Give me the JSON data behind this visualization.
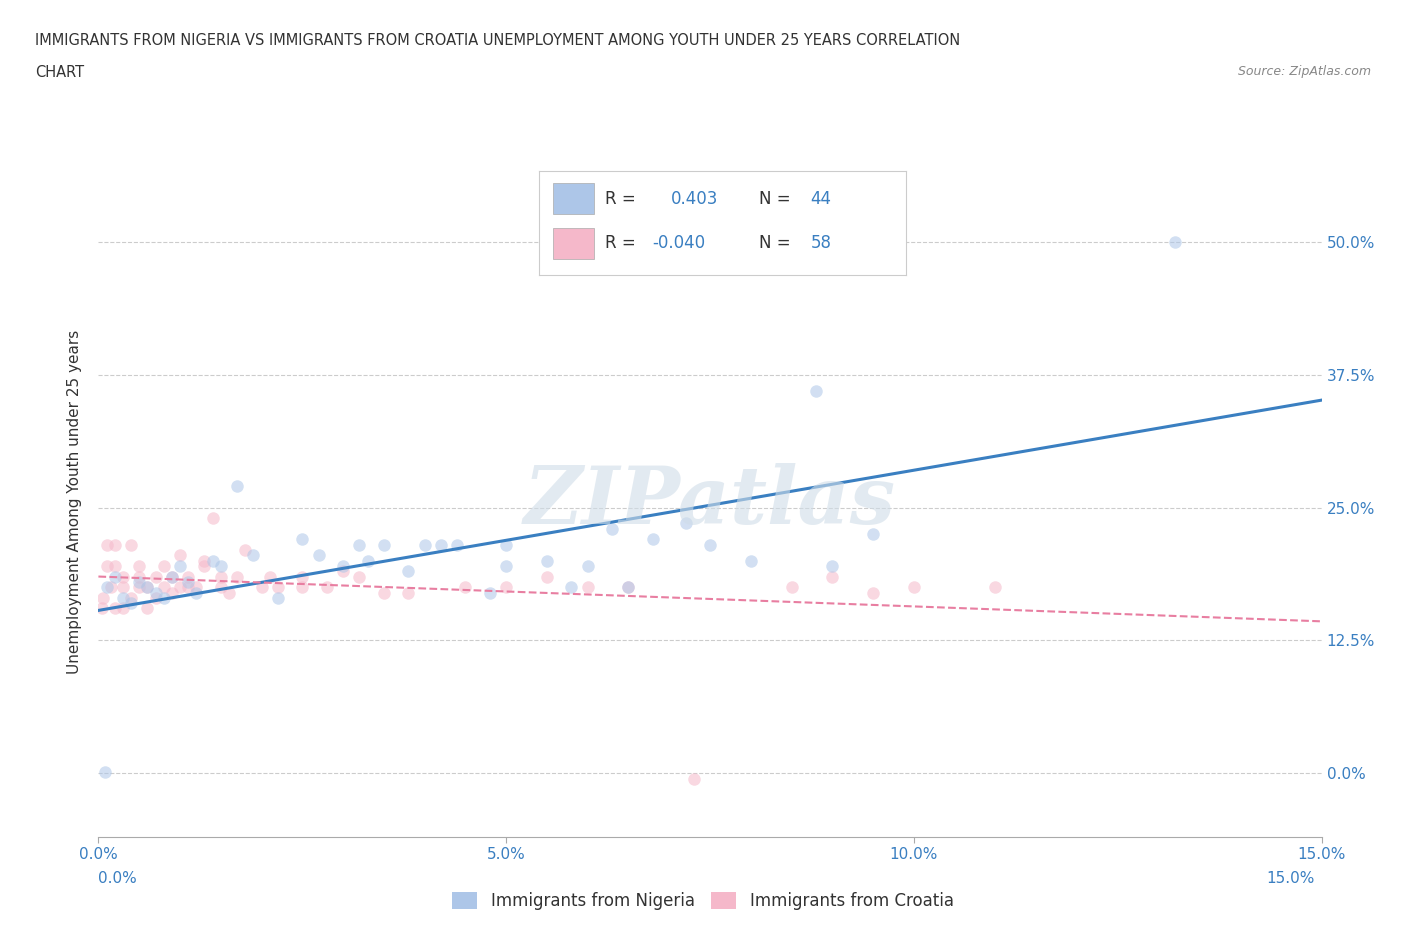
{
  "title_line1": "IMMIGRANTS FROM NIGERIA VS IMMIGRANTS FROM CROATIA UNEMPLOYMENT AMONG YOUTH UNDER 25 YEARS CORRELATION",
  "title_line2": "CHART",
  "source": "Source: ZipAtlas.com",
  "ylabel": "Unemployment Among Youth under 25 years",
  "xmin": 0.0,
  "xmax": 0.15,
  "ymin": -0.06,
  "ymax": 0.57,
  "yticks": [
    0.0,
    0.125,
    0.25,
    0.375,
    0.5
  ],
  "ytick_labels": [
    "0.0%",
    "12.5%",
    "25.0%",
    "37.5%",
    "50.0%"
  ],
  "xticks": [
    0.0,
    0.05,
    0.1,
    0.15
  ],
  "xtick_labels": [
    "0.0%",
    "5.0%",
    "10.0%",
    "15.0%"
  ],
  "nigeria_color": "#adc6e8",
  "croatia_color": "#f5b8ca",
  "nigeria_line_color": "#3a7fc1",
  "croatia_line_color": "#e87ea1",
  "R_nigeria": 0.403,
  "N_nigeria": 44,
  "R_croatia": -0.04,
  "N_croatia": 58,
  "nigeria_x": [
    0.0008,
    0.001,
    0.002,
    0.003,
    0.004,
    0.005,
    0.006,
    0.007,
    0.008,
    0.009,
    0.01,
    0.011,
    0.012,
    0.014,
    0.015,
    0.017,
    0.019,
    0.022,
    0.025,
    0.027,
    0.03,
    0.032,
    0.033,
    0.035,
    0.038,
    0.04,
    0.042,
    0.044,
    0.048,
    0.05,
    0.05,
    0.055,
    0.058,
    0.06,
    0.063,
    0.065,
    0.068,
    0.072,
    0.075,
    0.08,
    0.088,
    0.09,
    0.095,
    0.132
  ],
  "nigeria_y": [
    0.001,
    0.175,
    0.185,
    0.165,
    0.16,
    0.18,
    0.175,
    0.17,
    0.165,
    0.185,
    0.195,
    0.18,
    0.17,
    0.2,
    0.195,
    0.27,
    0.205,
    0.165,
    0.22,
    0.205,
    0.195,
    0.215,
    0.2,
    0.215,
    0.19,
    0.215,
    0.215,
    0.215,
    0.17,
    0.195,
    0.215,
    0.2,
    0.175,
    0.195,
    0.23,
    0.175,
    0.22,
    0.235,
    0.215,
    0.2,
    0.36,
    0.195,
    0.225,
    0.5
  ],
  "croatia_x": [
    0.0004,
    0.0006,
    0.001,
    0.001,
    0.0015,
    0.002,
    0.002,
    0.002,
    0.003,
    0.003,
    0.003,
    0.004,
    0.004,
    0.005,
    0.005,
    0.005,
    0.006,
    0.006,
    0.007,
    0.007,
    0.008,
    0.008,
    0.009,
    0.009,
    0.01,
    0.01,
    0.011,
    0.011,
    0.012,
    0.013,
    0.013,
    0.014,
    0.015,
    0.015,
    0.016,
    0.017,
    0.018,
    0.02,
    0.021,
    0.022,
    0.025,
    0.025,
    0.028,
    0.03,
    0.032,
    0.035,
    0.038,
    0.045,
    0.05,
    0.055,
    0.06,
    0.065,
    0.073,
    0.085,
    0.09,
    0.095,
    0.1,
    0.11
  ],
  "croatia_y": [
    0.155,
    0.165,
    0.195,
    0.215,
    0.175,
    0.155,
    0.195,
    0.215,
    0.175,
    0.185,
    0.155,
    0.165,
    0.215,
    0.175,
    0.185,
    0.195,
    0.155,
    0.175,
    0.185,
    0.165,
    0.175,
    0.195,
    0.17,
    0.185,
    0.175,
    0.205,
    0.175,
    0.185,
    0.175,
    0.195,
    0.2,
    0.24,
    0.175,
    0.185,
    0.17,
    0.185,
    0.21,
    0.175,
    0.185,
    0.175,
    0.175,
    0.185,
    0.175,
    0.19,
    0.185,
    0.17,
    0.17,
    0.175,
    0.175,
    0.185,
    0.175,
    0.175,
    -0.005,
    0.175,
    0.185,
    0.17,
    0.175,
    0.175
  ],
  "background_color": "#ffffff",
  "grid_color": "#cccccc",
  "text_color_blue": "#3a7fc1",
  "text_color_black": "#333333",
  "legend_label_nigeria": "Immigrants from Nigeria",
  "legend_label_croatia": "Immigrants from Croatia",
  "watermark": "ZIPatlas",
  "marker_size": 9,
  "marker_alpha": 0.55
}
